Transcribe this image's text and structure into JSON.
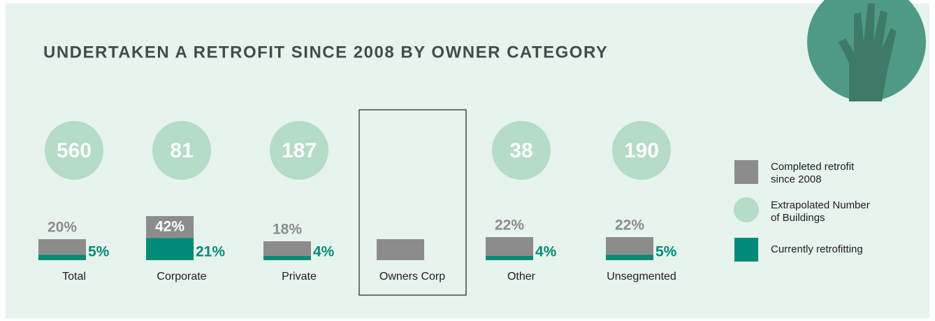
{
  "chart_data": {
    "type": "bar",
    "title": "UNDERTAKEN A RETROFIT SINCE 2008 BY OWNER CATEGORY",
    "categories": [
      "Total",
      "Corporate",
      "Private",
      "Owners Corp",
      "Other",
      "Unsegmented"
    ],
    "series": [
      {
        "name": "Completed retrofit since 2008",
        "color": "#8c8c8c",
        "values": [
          20,
          42,
          18,
          20,
          22,
          22
        ],
        "value_labels": [
          "20%",
          "42%",
          "18%",
          null,
          "22%",
          "22%"
        ]
      },
      {
        "name": "Extrapolated Number of Buildings",
        "color": "#b4dcc7",
        "values": [
          560,
          81,
          187,
          null,
          38,
          190
        ]
      },
      {
        "name": "Currently retrofitting",
        "color": "#008b78",
        "values": [
          5,
          21,
          4,
          null,
          4,
          5
        ],
        "value_labels": [
          "5%",
          "21%",
          "4%",
          null,
          "4%",
          "5%"
        ]
      }
    ]
  }
}
